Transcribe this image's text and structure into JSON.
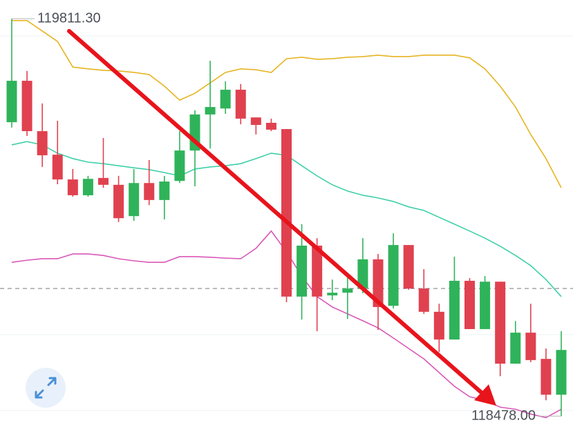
{
  "chart_data": {
    "type": "candlestick",
    "ylim": [
      118418,
      119874
    ],
    "up_color": "#2fb35a",
    "down_color": "#e0414f",
    "open": [
      119464,
      119603,
      119434,
      119355,
      119272,
      119219,
      119277,
      119254,
      119149,
      119260,
      119203,
      119267,
      119369,
      119490,
      119510,
      119573,
      119480,
      119462,
      119441,
      118879,
      119050,
      118883,
      118892,
      118906,
      119004,
      118848,
      119052,
      118906,
      118828,
      118735,
      118932,
      118770,
      118929,
      118654,
      118758,
      118670,
      118550
    ],
    "high": [
      119811,
      119636,
      119527,
      119469,
      119307,
      119284,
      119411,
      119284,
      119307,
      119337,
      119284,
      119434,
      119504,
      119670,
      119601,
      119592,
      119480,
      119476,
      119441,
      119122,
      119075,
      118936,
      118948,
      119075,
      119022,
      119091,
      119052,
      118971,
      118855,
      119013,
      118941,
      118948,
      118929,
      118797,
      118855,
      118705,
      118763
    ],
    "low": [
      119446,
      119418,
      119314,
      119256,
      119214,
      119214,
      119244,
      119129,
      119133,
      119186,
      119138,
      119260,
      119249,
      119376,
      119492,
      119457,
      119423,
      119434,
      118860,
      118802,
      118763,
      118867,
      118804,
      118890,
      118767,
      118839,
      118902,
      118821,
      118693,
      118735,
      118770,
      118770,
      118612,
      118654,
      118659,
      118531,
      118478
    ],
    "close": [
      119603,
      119434,
      119353,
      119272,
      119219,
      119274,
      119254,
      119142,
      119260,
      119203,
      119265,
      119369,
      119490,
      119515,
      119573,
      119476,
      119455,
      119439,
      118879,
      119050,
      118879,
      118892,
      118906,
      119004,
      118844,
      119052,
      118906,
      118828,
      118735,
      118932,
      118770,
      118929,
      118654,
      118758,
      118666,
      118550,
      118700
    ],
    "series": [
      {
        "color": "#e6b422",
        "values": [
          119805,
          119805,
          119770,
          119735,
          119649,
          119643,
          119638,
          119636,
          119631,
          119624,
          119585,
          119538,
          119561,
          119596,
          119631,
          119643,
          119640,
          119631,
          119677,
          119682,
          119675,
          119677,
          119682,
          119684,
          119689,
          119684,
          119684,
          119689,
          119689,
          119689,
          119680,
          119643,
          119585,
          119515,
          119423,
          119342,
          119244
        ]
      },
      {
        "color": "#3ecfa8",
        "values": [
          119388,
          119399,
          119388,
          119360,
          119342,
          119330,
          119325,
          119318,
          119311,
          119305,
          119295,
          119284,
          119307,
          119314,
          119318,
          119325,
          119342,
          119360,
          119353,
          119318,
          119284,
          119254,
          119233,
          119219,
          119210,
          119198,
          119180,
          119168,
          119145,
          119122,
          119099,
          119075,
          119048,
          119017,
          118983,
          118936,
          118879
        ]
      },
      {
        "color": "#d957b8",
        "values": [
          118994,
          119001,
          119006,
          119006,
          119022,
          119022,
          119017,
          119006,
          118999,
          118994,
          118994,
          119013,
          119013,
          119011,
          119008,
          119006,
          119041,
          119099,
          119029,
          118948,
          118879,
          118844,
          118821,
          118798,
          118774,
          118740,
          118705,
          118670,
          118624,
          118578,
          118543,
          118531,
          118508,
          118501,
          118485,
          118473,
          118501
        ]
      }
    ],
    "reference_line": 118906,
    "annotations": [
      {
        "value": 119811.3,
        "label": "119811.30"
      },
      {
        "value": 118478,
        "label": "118478.00"
      }
    ]
  }
}
